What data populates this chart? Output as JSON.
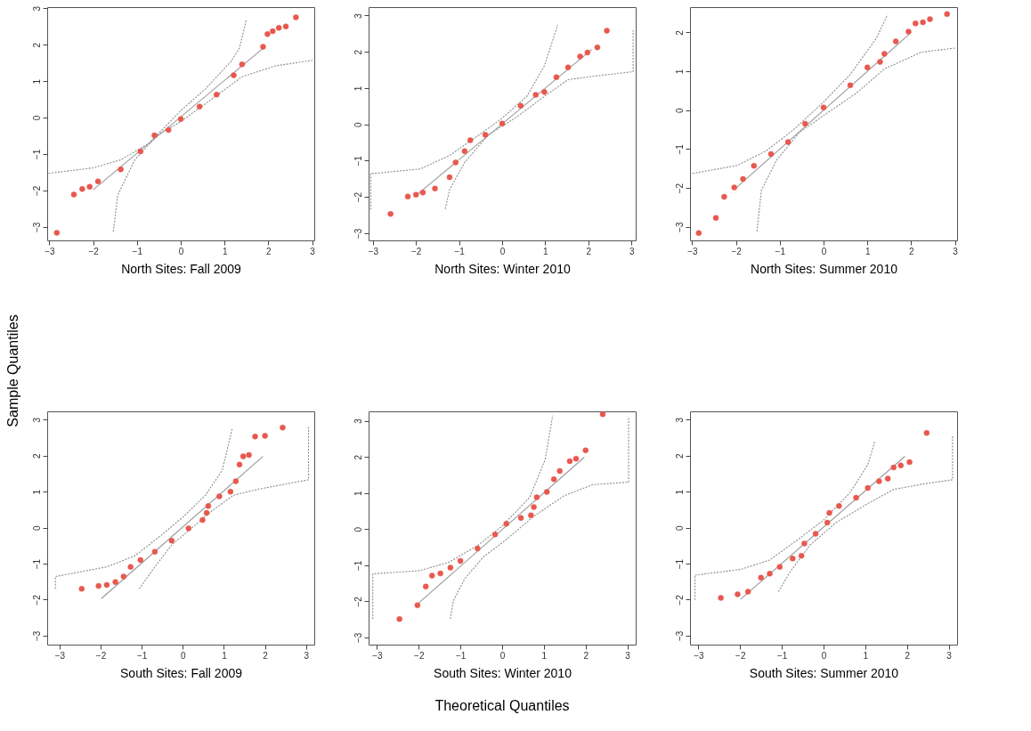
{
  "chart_data": [
    {
      "type": "scatter",
      "xlabel": "North Sites: Fall 2009",
      "xlim": [
        -3.05,
        3.05
      ],
      "ylim": [
        -3.37,
        3.03
      ],
      "xticks": [
        -3,
        -2,
        -1,
        0,
        1,
        2,
        3
      ],
      "yticks": [
        -3,
        -2,
        -1,
        0,
        1,
        2,
        3
      ],
      "series": [
        {
          "type": "scatter",
          "marker": "circle",
          "color": "#e8584f",
          "x": [
            -2.83,
            -2.44,
            -2.25,
            -2.08,
            -1.89,
            -1.37,
            -0.92,
            -0.6,
            -0.28,
            0,
            0.43,
            0.82,
            1.21,
            1.4,
            1.88,
            1.98,
            2.1,
            2.24,
            2.4,
            2.63
          ],
          "values": [
            -3.16,
            -2.11,
            -1.96,
            -1.9,
            -1.75,
            -1.42,
            -0.93,
            -0.49,
            -0.34,
            -0.04,
            0.3,
            0.63,
            1.16,
            1.46,
            1.94,
            2.29,
            2.37,
            2.46,
            2.5,
            2.75
          ]
        },
        {
          "type": "line",
          "color": "#9a9a9a",
          "line_style": "solid",
          "x": [
            -2,
            1.92
          ],
          "values": [
            -1.98,
            1.94
          ]
        },
        {
          "type": "line",
          "color": "#8c8c8c",
          "line_style": "dotted",
          "x": [
            -3.02,
            -2,
            -1.37,
            -0.73,
            0,
            0.56,
            1.14,
            1.34,
            1.5
          ],
          "values": [
            -1.53,
            -1.38,
            -1.16,
            -0.71,
            0.19,
            0.78,
            1.53,
            1.9,
            2.69
          ]
        },
        {
          "type": "line",
          "color": "#8c8c8c",
          "line_style": "dotted",
          "x": [
            -1.54,
            -1.44,
            -1.05,
            -0.54,
            0,
            0.69,
            1.4,
            2.17,
            3.01
          ],
          "values": [
            -3.13,
            -2.13,
            -1.16,
            -0.49,
            -0.11,
            0.49,
            1.12,
            1.42,
            1.57
          ]
        }
      ]
    },
    {
      "type": "scatter",
      "xlabel": "North Sites: Winter 2010",
      "xlim": [
        -3.1,
        3.1
      ],
      "ylim": [
        -3.2,
        3.23
      ],
      "xticks": [
        -3,
        -2,
        -1,
        0,
        1,
        2,
        3
      ],
      "yticks": [
        -3,
        -2,
        -1,
        0,
        1,
        2,
        3
      ],
      "series": [
        {
          "type": "scatter",
          "marker": "circle",
          "color": "#e8584f",
          "x": [
            -2.59,
            -2.19,
            -2.0,
            -1.84,
            -1.56,
            -1.22,
            -1.08,
            -0.87,
            -0.74,
            -0.39,
            0,
            0.43,
            0.78,
            0.98,
            1.26,
            1.53,
            1.81,
            1.98,
            2.21,
            2.43
          ],
          "values": [
            -2.47,
            -1.99,
            -1.94,
            -1.88,
            -1.77,
            -1.46,
            -1.05,
            -0.74,
            -0.44,
            -0.29,
            0.02,
            0.51,
            0.81,
            0.89,
            1.3,
            1.57,
            1.87,
            1.98,
            2.12,
            2.58
          ]
        },
        {
          "type": "line",
          "color": "#9a9a9a",
          "line_style": "solid",
          "x": [
            -1.99,
            2.08
          ],
          "values": [
            -1.95,
            2.06
          ]
        },
        {
          "type": "line",
          "color": "#8c8c8c",
          "line_style": "dotted",
          "x": [
            -3.05,
            -3.05,
            -2.93,
            -1.9,
            -1.22,
            -0.53,
            0,
            0.57,
            0.98,
            1.29
          ],
          "values": [
            -2.35,
            -1.35,
            -1.35,
            -1.23,
            -0.86,
            -0.29,
            0.17,
            0.77,
            1.61,
            2.74
          ]
        },
        {
          "type": "line",
          "color": "#8c8c8c",
          "line_style": "dotted",
          "x": [
            -1.32,
            -1.22,
            -0.87,
            -0.32,
            0.3,
            0.98,
            1.53,
            2.22,
            3.04,
            3.04
          ],
          "values": [
            -2.33,
            -1.8,
            -1.05,
            -0.29,
            0.17,
            0.77,
            1.23,
            1.34,
            1.45,
            2.59
          ]
        }
      ]
    },
    {
      "type": "scatter",
      "xlabel": "North Sites: Summer 2010",
      "xlim": [
        -3.05,
        3.05
      ],
      "ylim": [
        -3.35,
        2.65
      ],
      "xticks": [
        -3,
        -2,
        -1,
        0,
        1,
        2,
        3
      ],
      "yticks": [
        -3,
        -2,
        -1,
        0,
        1,
        2
      ],
      "series": [
        {
          "type": "scatter",
          "marker": "circle",
          "color": "#e8584f",
          "x": [
            -2.85,
            -2.46,
            -2.27,
            -2.04,
            -1.84,
            -1.59,
            -1.2,
            -0.81,
            -0.42,
            0,
            0.61,
            1.0,
            1.29,
            1.39,
            1.65,
            1.94,
            2.1,
            2.27,
            2.43,
            2.82
          ],
          "values": [
            -3.16,
            -2.77,
            -2.23,
            -1.99,
            -1.77,
            -1.43,
            -1.13,
            -0.82,
            -0.35,
            0.07,
            0.64,
            1.1,
            1.24,
            1.45,
            1.77,
            2.02,
            2.23,
            2.26,
            2.34,
            2.47
          ]
        },
        {
          "type": "line",
          "color": "#9a9a9a",
          "line_style": "solid",
          "x": [
            -2,
            2
          ],
          "values": [
            -2,
            2
          ]
        },
        {
          "type": "line",
          "color": "#8c8c8c",
          "line_style": "dotted",
          "x": [
            -2.99,
            -1.97,
            -1.33,
            -0.68,
            0,
            0.61,
            1.2,
            1.46
          ],
          "values": [
            -1.63,
            -1.42,
            -1.06,
            -0.5,
            0.21,
            0.92,
            1.84,
            2.45
          ]
        },
        {
          "type": "line",
          "color": "#8c8c8c",
          "line_style": "dotted",
          "x": [
            -1.52,
            -1.42,
            -1.07,
            -0.55,
            0,
            0.74,
            1.39,
            2.23,
            3.01
          ],
          "values": [
            -3.12,
            -2.06,
            -1.28,
            -0.57,
            -0.14,
            0.43,
            1.06,
            1.49,
            1.6
          ]
        }
      ]
    },
    {
      "type": "scatter",
      "xlabel": "South Sites: Fall 2009",
      "ylabel": "Sample Quantiles",
      "xlim": [
        -3.3,
        3.2
      ],
      "ylim": [
        -3.25,
        3.23
      ],
      "xticks": [
        -3,
        -2,
        -1,
        0,
        1,
        2,
        3
      ],
      "yticks": [
        -3,
        -2,
        -1,
        0,
        1,
        2,
        3
      ],
      "series": [
        {
          "type": "scatter",
          "marker": "circle",
          "color": "#e8584f",
          "x": [
            -2.46,
            -2.05,
            -1.85,
            -1.64,
            -1.44,
            -1.27,
            -1.03,
            -0.68,
            -0.27,
            0.14,
            0.48,
            0.58,
            0.62,
            0.89,
            1.16,
            1.29,
            1.38,
            1.47,
            1.61,
            1.76,
            2.0,
            2.43
          ],
          "values": [
            -1.7,
            -1.62,
            -1.59,
            -1.51,
            -1.36,
            -1.09,
            -0.9,
            -0.67,
            -0.36,
            -0.02,
            0.21,
            0.41,
            0.6,
            0.87,
            1.0,
            1.29,
            1.75,
            1.98,
            2.02,
            2.53,
            2.55,
            2.78
          ]
        },
        {
          "type": "line",
          "color": "#9a9a9a",
          "line_style": "solid",
          "x": [
            -1.98,
            1.95
          ],
          "values": [
            -1.97,
            1.98
          ]
        },
        {
          "type": "line",
          "color": "#8c8c8c",
          "line_style": "dotted",
          "x": [
            -3.1,
            -3.1,
            -1.85,
            -1.16,
            -0.48,
            0,
            0.55,
            0.96,
            1.2
          ],
          "values": [
            -1.7,
            -1.36,
            -1.09,
            -0.78,
            -0.17,
            0.29,
            0.9,
            1.59,
            2.74
          ]
        },
        {
          "type": "line",
          "color": "#8c8c8c",
          "line_style": "dotted",
          "x": [
            -1.06,
            -0.68,
            -0.27,
            0.21,
            0.68,
            1.23,
            1.85,
            3.06,
            3.06
          ],
          "values": [
            -1.7,
            -1.09,
            -0.48,
            -0.02,
            0.44,
            0.9,
            1.07,
            1.33,
            2.82
          ]
        }
      ]
    },
    {
      "type": "scatter",
      "xlabel": "South Sites: Winter 2010",
      "xlim": [
        -3.2,
        3.2
      ],
      "ylim": [
        -3.2,
        3.26
      ],
      "xticks": [
        -3,
        -2,
        -1,
        0,
        1,
        2,
        3
      ],
      "yticks": [
        -3,
        -2,
        -1,
        0,
        1,
        2,
        3
      ],
      "annotations": [
        "Theoretical Quantiles"
      ],
      "series": [
        {
          "type": "scatter",
          "marker": "circle",
          "color": "#e8584f",
          "x": [
            -2.46,
            -2.03,
            -1.83,
            -1.68,
            -1.48,
            -1.24,
            -1.0,
            -0.59,
            -0.17,
            0.1,
            0.45,
            0.69,
            0.76,
            0.83,
            1.07,
            1.24,
            1.38,
            1.62,
            1.77,
            2.0,
            2.41
          ],
          "values": [
            -2.49,
            -2.11,
            -1.59,
            -1.29,
            -1.23,
            -1.07,
            -0.88,
            -0.54,
            -0.15,
            0.15,
            0.31,
            0.38,
            0.61,
            0.88,
            1.03,
            1.38,
            1.61,
            1.88,
            1.95,
            2.18,
            3.18
          ]
        },
        {
          "type": "line",
          "color": "#9a9a9a",
          "line_style": "solid",
          "x": [
            -2.02,
            1.97
          ],
          "values": [
            -2.07,
            1.99
          ]
        },
        {
          "type": "line",
          "color": "#8c8c8c",
          "line_style": "dotted",
          "x": [
            -3.1,
            -3.1,
            -1.97,
            -1.28,
            -0.59,
            0,
            0.66,
            1.03,
            1.21
          ],
          "values": [
            -2.49,
            -1.24,
            -1.15,
            -0.92,
            -0.46,
            0.08,
            0.88,
            1.92,
            3.14
          ]
        },
        {
          "type": "line",
          "color": "#8c8c8c",
          "line_style": "dotted",
          "x": [
            -1.24,
            -1.17,
            -0.9,
            -0.45,
            0,
            0.79,
            1.48,
            2.17,
            3.03,
            3.03
          ],
          "values": [
            -2.49,
            -1.99,
            -1.38,
            -0.77,
            -0.38,
            0.38,
            0.92,
            1.23,
            1.3,
            3.1
          ]
        }
      ]
    },
    {
      "type": "scatter",
      "xlabel": "South Sites: Summer 2010",
      "xlim": [
        -3.2,
        3.2
      ],
      "ylim": [
        -3.25,
        3.23
      ],
      "xticks": [
        -3,
        -2,
        -1,
        0,
        1,
        2,
        3
      ],
      "yticks": [
        -3,
        -2,
        -1,
        0,
        1,
        2,
        3
      ],
      "series": [
        {
          "type": "scatter",
          "marker": "circle",
          "color": "#e8584f",
          "x": [
            -2.46,
            -2.06,
            -1.81,
            -1.5,
            -1.29,
            -1.05,
            -0.74,
            -0.53,
            -0.46,
            -0.19,
            0.09,
            0.14,
            0.37,
            0.78,
            1.06,
            1.33,
            1.54,
            1.68,
            1.85,
            2.06,
            2.47
          ],
          "values": [
            -1.95,
            -1.85,
            -1.78,
            -1.39,
            -1.28,
            -1.09,
            -0.86,
            -0.78,
            -0.44,
            -0.17,
            0.14,
            0.41,
            0.6,
            0.83,
            1.1,
            1.29,
            1.36,
            1.67,
            1.73,
            1.82,
            2.63
          ]
        },
        {
          "type": "line",
          "color": "#9a9a9a",
          "line_style": "solid",
          "x": [
            -1.99,
            1.95
          ],
          "values": [
            -1.99,
            1.98
          ]
        },
        {
          "type": "line",
          "color": "#8c8c8c",
          "line_style": "dotted",
          "x": [
            -3.08,
            -3.08,
            -1.98,
            -1.29,
            -0.6,
            0,
            0.64,
            1.06,
            1.23
          ],
          "values": [
            -2.01,
            -1.32,
            -1.16,
            -0.9,
            -0.32,
            0.21,
            0.98,
            1.75,
            2.4
          ]
        },
        {
          "type": "line",
          "color": "#8c8c8c",
          "line_style": "dotted",
          "x": [
            -1.08,
            -0.81,
            -0.32,
            0.3,
            1.06,
            1.68,
            2.37,
            3.09,
            3.09
          ],
          "values": [
            -1.78,
            -1.24,
            -0.48,
            0.14,
            0.67,
            1.06,
            1.21,
            1.33,
            2.55
          ]
        }
      ]
    }
  ]
}
